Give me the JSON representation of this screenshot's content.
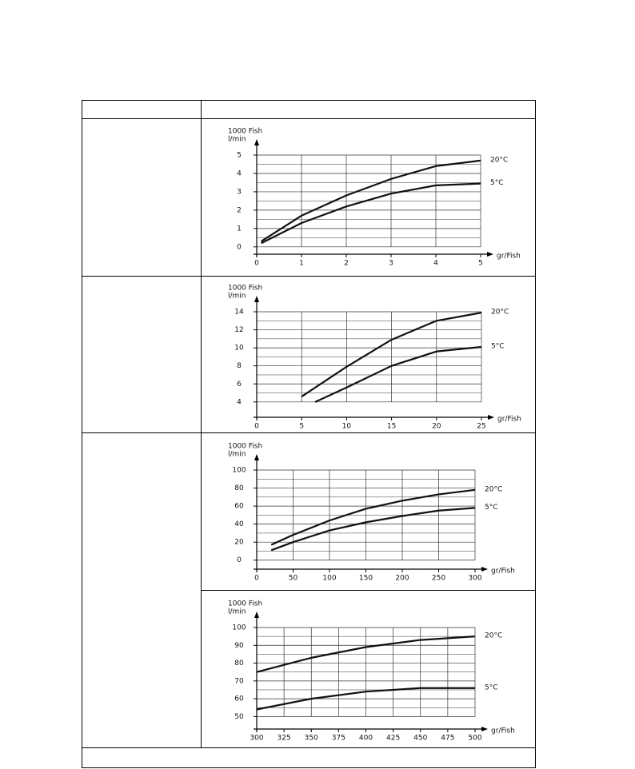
{
  "chart_data": [
    {
      "type": "line",
      "ylabel": "1000 Fish",
      "yunit": "l/min",
      "xlabel": "gr/Fish",
      "xlim": [
        0,
        5
      ],
      "xticks": [
        0,
        1,
        2,
        3,
        4,
        5
      ],
      "ylim": [
        -0.4,
        5
      ],
      "yticks": [
        0,
        1,
        2,
        3,
        4,
        5
      ],
      "grid": true,
      "series": [
        {
          "name": "20°C",
          "color": "#111",
          "x": [
            0.1,
            1,
            2,
            3,
            4,
            5
          ],
          "values": [
            0.3,
            1.7,
            2.8,
            3.7,
            4.4,
            4.7
          ]
        },
        {
          "name": "5°C",
          "color": "#111",
          "x": [
            0.1,
            1,
            2,
            3,
            4,
            5
          ],
          "values": [
            0.2,
            1.3,
            2.2,
            2.9,
            3.35,
            3.45
          ]
        }
      ]
    },
    {
      "type": "line",
      "ylabel": "1000 Fish",
      "yunit": "l/min",
      "xlabel": "gr/Fish",
      "xlim": [
        0,
        25
      ],
      "xticks": [
        0,
        5,
        10,
        15,
        20,
        25
      ],
      "ylim": [
        2.3,
        14
      ],
      "yticks": [
        4,
        6,
        8,
        10,
        12,
        14
      ],
      "grid": true,
      "series": [
        {
          "name": "20°C",
          "color": "#111",
          "x": [
            5,
            10,
            15,
            20,
            25
          ],
          "values": [
            4.6,
            7.9,
            10.9,
            13,
            13.9
          ]
        },
        {
          "name": "5°C",
          "color": "#111",
          "x": [
            6.5,
            10,
            15,
            20,
            25
          ],
          "values": [
            4,
            5.6,
            8,
            9.6,
            10.1
          ]
        }
      ]
    },
    {
      "type": "line",
      "ylabel": "1000 Fish",
      "yunit": "l/min",
      "xlabel": "gr/Fish",
      "xlim": [
        0,
        300
      ],
      "xticks": [
        0,
        50,
        100,
        150,
        200,
        250,
        300
      ],
      "ylim": [
        -10,
        100
      ],
      "yticks": [
        0,
        20,
        40,
        60,
        80,
        100
      ],
      "grid": true,
      "series": [
        {
          "name": "20°C",
          "color": "#111",
          "x": [
            20,
            50,
            100,
            150,
            200,
            250,
            300
          ],
          "values": [
            17,
            28,
            44,
            57,
            66,
            73,
            78
          ]
        },
        {
          "name": "5°C",
          "color": "#111",
          "x": [
            20,
            50,
            100,
            150,
            200,
            250,
            300
          ],
          "values": [
            11,
            20,
            33,
            42,
            49,
            55,
            58
          ]
        }
      ]
    },
    {
      "type": "line",
      "ylabel": "1000 Fish",
      "yunit": "l/min",
      "xlabel": "gr/Fish",
      "xlim": [
        300,
        500
      ],
      "xticks": [
        300,
        325,
        350,
        375,
        400,
        425,
        450,
        475,
        500
      ],
      "ylim": [
        43,
        100
      ],
      "yticks": [
        50,
        60,
        70,
        80,
        90,
        100
      ],
      "grid": true,
      "series": [
        {
          "name": "20°C",
          "color": "#111",
          "x": [
            300,
            350,
            400,
            450,
            500
          ],
          "values": [
            75,
            83,
            89,
            93,
            95
          ]
        },
        {
          "name": "5°C",
          "color": "#111",
          "x": [
            300,
            350,
            400,
            450,
            500
          ],
          "values": [
            54,
            60,
            64,
            66,
            66
          ]
        }
      ]
    }
  ]
}
